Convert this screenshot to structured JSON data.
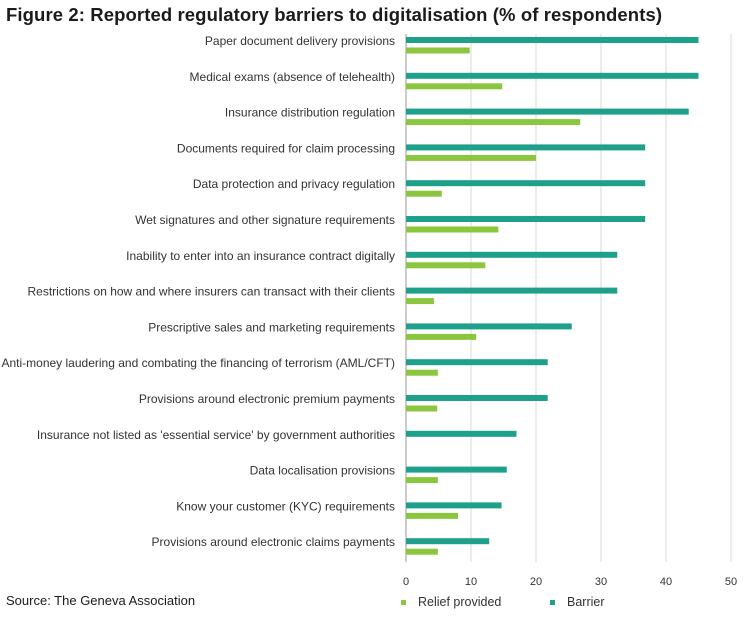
{
  "title": "Figure 2: Reported regulatory barriers to digitalisation (% of respondents)",
  "source": "Source: The Geneva Association",
  "colors": {
    "barrier": "#1fa08a",
    "relief": "#8cc63f",
    "grid": "#d9d9d9"
  },
  "chart_data": {
    "type": "bar",
    "orientation": "horizontal",
    "categories": [
      "Paper document delivery provisions",
      "Medical exams (absence of telehealth)",
      "Insurance distribution regulation",
      "Documents required for claim processing",
      "Data protection and privacy regulation",
      "Wet signatures and other signature requirements",
      "Inability to enter into an insurance contract digitally",
      "Restrictions on how and where insurers can transact  with their clients",
      "Prescriptive sales and marketing requirements",
      "Anti-money laudering and combating the financing of terrorism (AML/CFT)",
      "Provisions around electronic premium payments",
      "Insurance not listed as 'essential service' by government authorities",
      "Data localisation provisions",
      "Know your customer (KYC) requirements",
      "Provisions around electronic claims payments"
    ],
    "series": [
      {
        "name": "Barrier",
        "values": [
          45,
          45,
          43.5,
          36.8,
          36.8,
          36.8,
          32.5,
          32.5,
          25.5,
          21.8,
          21.8,
          17,
          15.5,
          14.7,
          12.8
        ]
      },
      {
        "name": "Relief provided",
        "values": [
          9.8,
          14.8,
          26.8,
          20,
          5.5,
          14.2,
          12.2,
          4.3,
          10.8,
          4.9,
          4.8,
          0,
          4.9,
          8,
          4.9
        ]
      }
    ],
    "xlim": [
      0,
      50
    ],
    "xticks": [
      0,
      10,
      20,
      30,
      40,
      50
    ],
    "grid": true,
    "legend_position": "bottom"
  }
}
